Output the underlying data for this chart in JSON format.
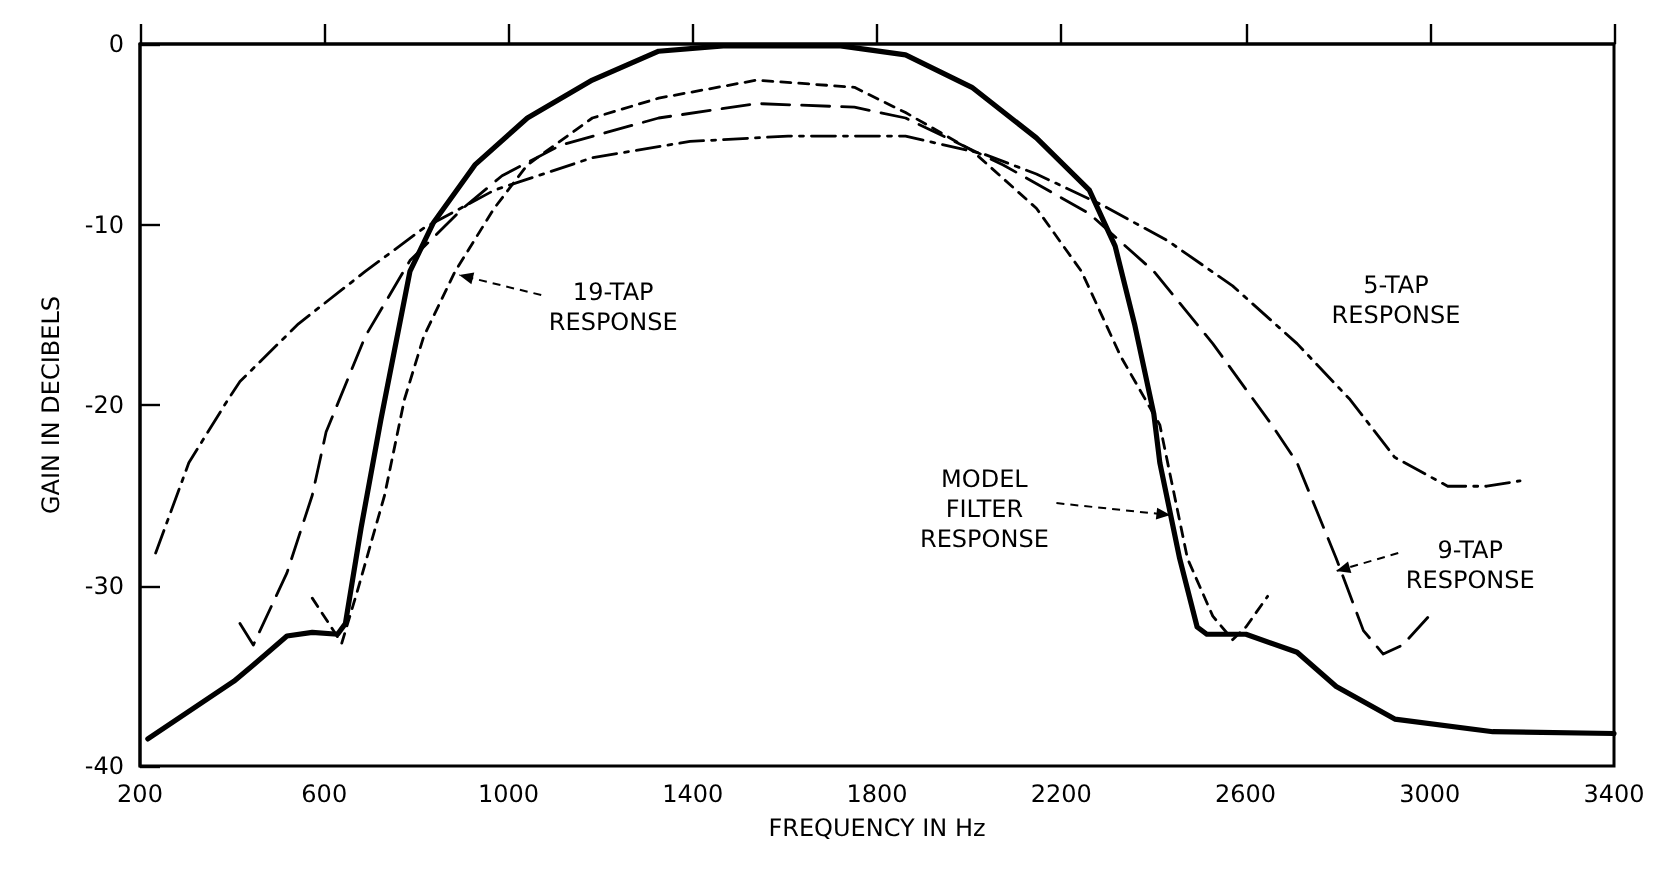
{
  "chart_data": {
    "type": "line",
    "xlabel": "FREQUENCY IN Hz",
    "ylabel": "GAIN IN DECIBELS",
    "xlim": [
      200,
      3400
    ],
    "xticks": [
      200,
      600,
      1000,
      1400,
      1800,
      2200,
      2600,
      3000,
      3400
    ],
    "ylim": [
      -40,
      0
    ],
    "yticks": [
      -40,
      -30,
      -20,
      -10,
      0
    ],
    "grid": false,
    "marker": "none",
    "series": [
      {
        "color": "#000000",
        "line_style": "solid",
        "x": [
          217,
          404,
          446,
          519,
          574,
          629,
          646,
          680,
          723,
          786,
          837,
          927,
          1041,
          1182,
          1326,
          1466,
          1600,
          1721,
          1862,
          2006,
          2146,
          2261,
          2317,
          2359,
          2401,
          2414,
          2457,
          2495,
          2516,
          2601,
          2712,
          2797,
          2924,
          3137,
          3400
        ],
        "values": [
          -38.5,
          -35.3,
          -34.4,
          -32.8,
          -32.6,
          -32.7,
          -32.1,
          -26.8,
          -20.8,
          -12.6,
          -9.9,
          -6.7,
          -4.1,
          -2.0,
          -0.4,
          -0.1,
          -0.1,
          -0.1,
          -0.6,
          -2.4,
          -5.2,
          -8.1,
          -11.2,
          -15.5,
          -20.5,
          -23.2,
          -28.5,
          -32.3,
          -32.7,
          -32.7,
          -33.7,
          -35.6,
          -37.4,
          -38.1,
          -38.2
        ]
      },
      {
        "color": "#000000",
        "line_style": "dashed",
        "x": [
          574,
          638,
          672,
          731,
          774,
          816,
          884,
          969,
          1041,
          1182,
          1326,
          1539,
          1751,
          1862,
          2006,
          2146,
          2244,
          2329,
          2414,
          2474,
          2529,
          2572,
          2601,
          2648
        ],
        "values": [
          -30.7,
          -33.2,
          -30.3,
          -25.0,
          -19.7,
          -16.2,
          -12.6,
          -9.1,
          -6.7,
          -4.1,
          -3.0,
          -2.0,
          -2.4,
          -3.8,
          -5.9,
          -9.1,
          -12.6,
          -17.3,
          -21.1,
          -28.5,
          -31.7,
          -33.0,
          -32.3,
          -30.6
        ]
      },
      {
        "color": "#000000",
        "line_style": "dashed",
        "x": [
          417,
          446,
          519,
          574,
          604,
          689,
          786,
          901,
          986,
          1114,
          1326,
          1539,
          1751,
          1862,
          2074,
          2261,
          2401,
          2529,
          2657,
          2712,
          2797,
          2856,
          2899,
          2941,
          3009
        ],
        "values": [
          -32.1,
          -33.3,
          -29.3,
          -25.0,
          -21.5,
          -16.2,
          -12.0,
          -9.1,
          -7.3,
          -5.6,
          -4.1,
          -3.3,
          -3.5,
          -4.1,
          -6.7,
          -9.4,
          -12.6,
          -16.6,
          -21.1,
          -23.2,
          -28.5,
          -32.5,
          -33.8,
          -33.3,
          -31.4
        ]
      },
      {
        "color": "#000000",
        "line_style": "dotted",
        "x": [
          234,
          306,
          391,
          417,
          544,
          689,
          816,
          969,
          1182,
          1394,
          1607,
          1807,
          1862,
          2032,
          2146,
          2287,
          2431,
          2572,
          2712,
          2827,
          2924,
          3039,
          3124,
          3196
        ],
        "values": [
          -28.2,
          -23.2,
          -19.7,
          -18.7,
          -15.5,
          -12.6,
          -10.2,
          -8.1,
          -6.3,
          -5.4,
          -5.1,
          -5.1,
          -5.1,
          -6.1,
          -7.2,
          -8.9,
          -10.9,
          -13.4,
          -16.6,
          -19.7,
          -22.9,
          -24.5,
          -24.5,
          -24.2
        ]
      }
    ],
    "annotations": [
      {
        "text": "19-TAP RESPONSE",
        "x": 893,
        "y": -12.8
      },
      "5-TAP RESPONSE",
      {
        "text": "MODEL FILTER RESPONSE",
        "x": 2437,
        "y": -26.1
      },
      {
        "text": "9-TAP RESPONSE",
        "x": 2797,
        "y": -29.2
      }
    ]
  }
}
